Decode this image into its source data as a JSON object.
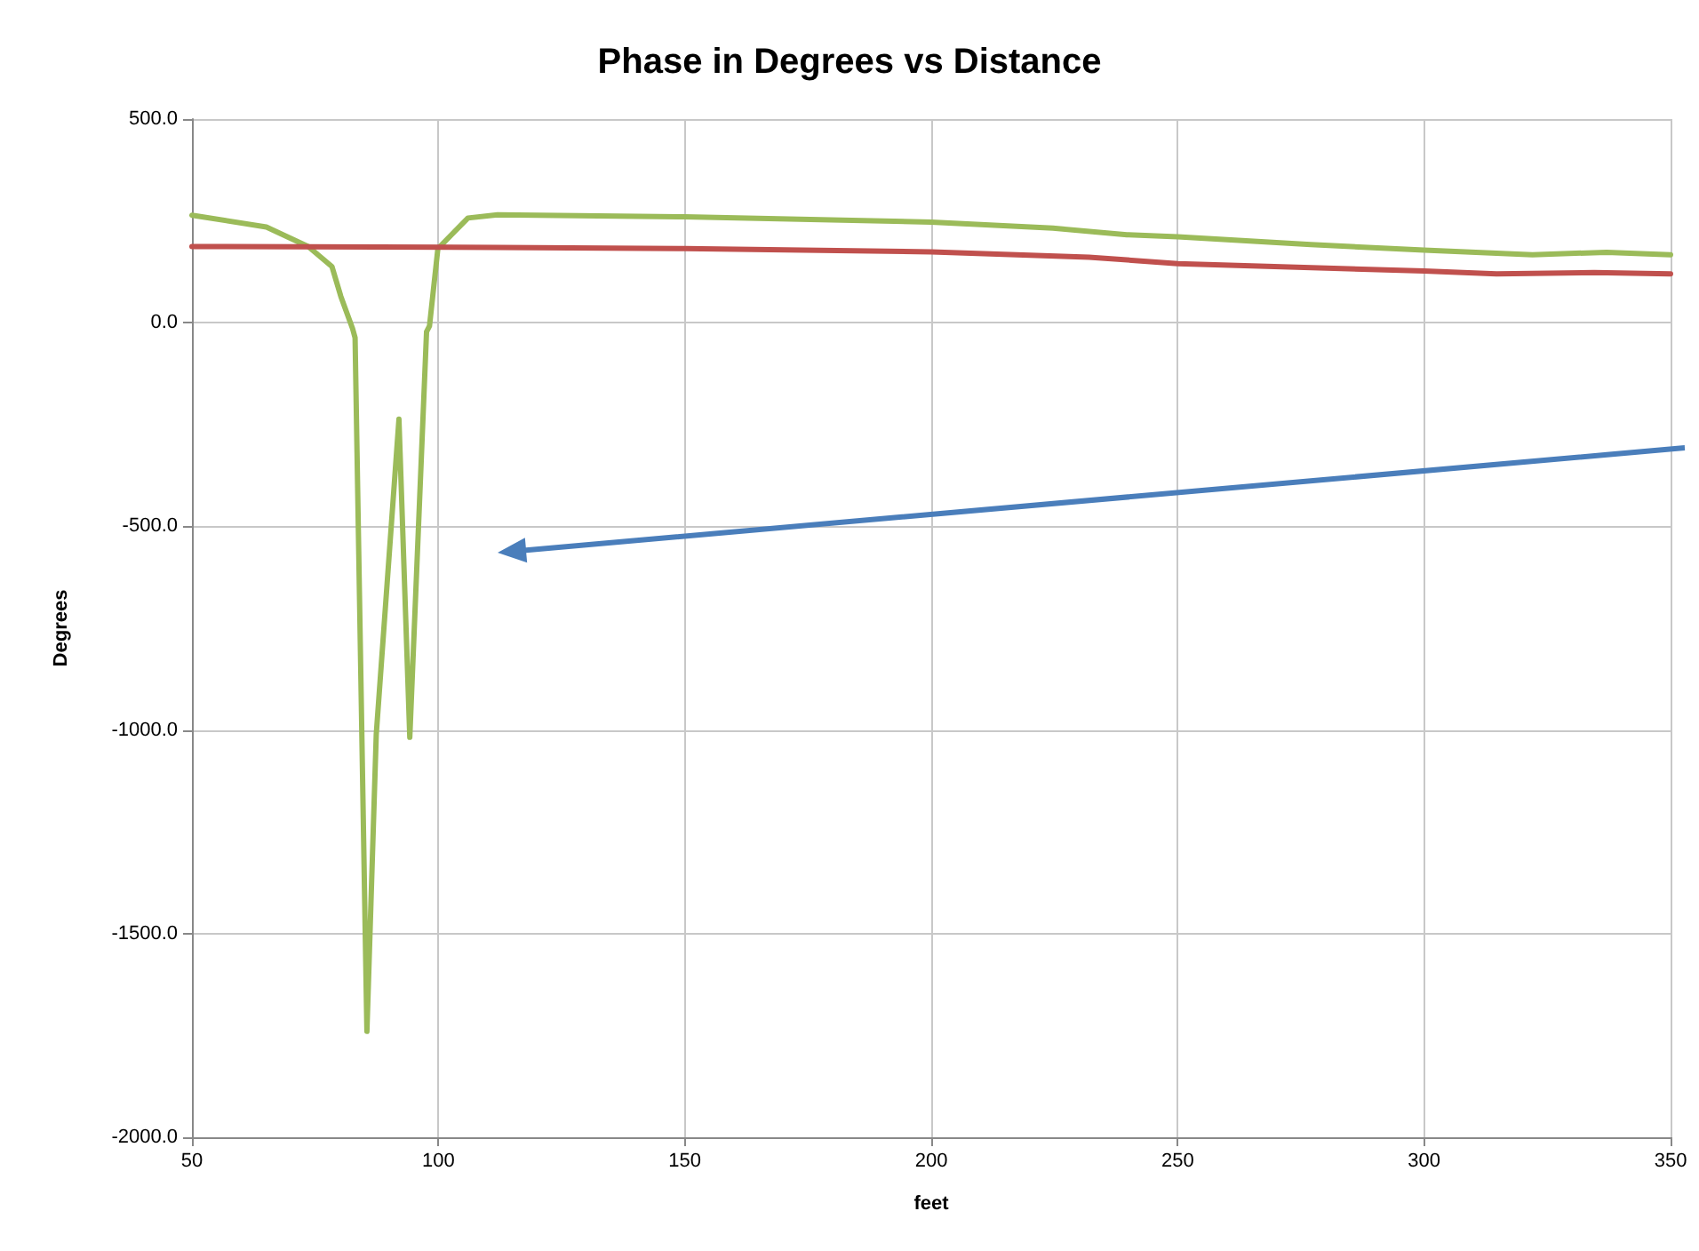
{
  "chart_data": {
    "type": "line",
    "title": "Phase in Degrees vs Distance",
    "xlabel": "feet",
    "ylabel": "Degrees",
    "series": [
      {
        "color": "#9bbb59",
        "x": [
          50,
          65.1,
          73.6,
          78.4,
          80.2,
          82.6,
          83.1,
          85.5,
          87.4,
          92.0,
          94.2,
          97.6,
          98.2,
          99.9,
          106,
          112,
          150,
          200,
          224.7,
          239.7,
          250,
          277,
          300,
          322,
          337,
          350
        ],
        "values": [
          264,
          235,
          187,
          138,
          65,
          -15,
          -37,
          -1740,
          -1010,
          -237,
          -1018,
          -22,
          -8,
          182,
          257,
          265,
          260,
          247,
          232,
          216,
          211,
          192,
          178,
          167,
          173,
          167
        ]
      },
      {
        "color": "#c0504d",
        "x": [
          50,
          112,
          150,
          200,
          232,
          250,
          300,
          314.7,
          334.5,
          350
        ],
        "values": [
          187,
          185,
          182,
          174,
          161,
          145,
          127,
          120,
          123,
          120
        ]
      }
    ],
    "xlim": [
      50,
      350
    ],
    "xticks": [
      50,
      100,
      150,
      200,
      250,
      300,
      350
    ],
    "ylim": [
      -2000,
      500
    ],
    "yticks": [
      {
        "value": -2000,
        "label": "-2000.0"
      },
      {
        "value": -1500,
        "label": "-1500.0"
      },
      {
        "value": -1000,
        "label": "-1000.0"
      },
      {
        "value": -500,
        "label": "-500.0"
      },
      {
        "value": 0,
        "label": "0.0"
      },
      {
        "value": 500,
        "label": "500.0"
      }
    ],
    "grid": true,
    "marker": "none",
    "line_style": "solid"
  }
}
